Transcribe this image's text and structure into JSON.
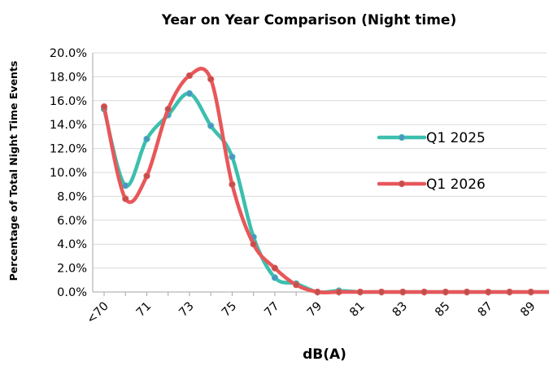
{
  "chart_data": {
    "type": "line",
    "title": "Year on Year Comparison (Night time)",
    "xlabel": "dB(A)",
    "ylabel": "Percentage of Total Night Time Events",
    "categories": [
      "<70",
      "70",
      "71",
      "72",
      "73",
      "74",
      "75",
      "76",
      "77",
      "78",
      "79",
      "80",
      "81",
      "82",
      "83",
      "84",
      "85",
      "86",
      "87",
      "88",
      "89",
      "90"
    ],
    "x_tick_labels": [
      "<70",
      "71",
      "73",
      "75",
      "77",
      "79",
      "81",
      "83",
      "85",
      "87",
      "89"
    ],
    "y_tick_labels": [
      "0.0%",
      "2.0%",
      "4.0%",
      "6.0%",
      "8.0%",
      "10.0%",
      "12.0%",
      "14.0%",
      "16.0%",
      "18.0%",
      "20.0%"
    ],
    "ylim": [
      0,
      20
    ],
    "y_unit": "%",
    "grid": "horizontal",
    "legend_position": "right",
    "smoothed": true,
    "series": [
      {
        "name": "Q1 2025",
        "color": "#3cbfae",
        "marker_color": "#4f93c4",
        "values": [
          15.3,
          8.9,
          12.8,
          14.8,
          16.6,
          13.9,
          11.3,
          4.6,
          1.2,
          0.7,
          0.0,
          0.1,
          0.0,
          0.0,
          0.0,
          0.0,
          0.0,
          0.0,
          0.0,
          0.0,
          0.0,
          0.0
        ]
      },
      {
        "name": "Q1 2026",
        "color": "#e8575a",
        "marker_color": "#c0504d",
        "values": [
          15.5,
          7.8,
          9.7,
          15.3,
          18.1,
          17.8,
          9.0,
          4.0,
          2.0,
          0.6,
          0.0,
          0.0,
          0.0,
          0.0,
          0.0,
          0.0,
          0.0,
          0.0,
          0.0,
          0.0,
          0.0,
          0.0
        ]
      }
    ]
  }
}
